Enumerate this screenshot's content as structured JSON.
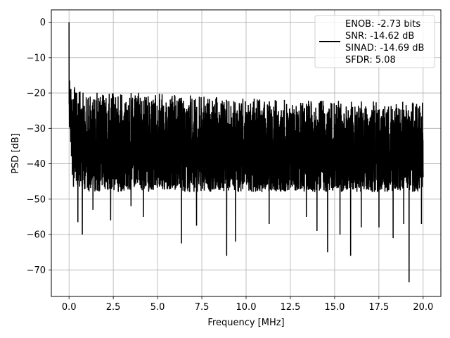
{
  "chart_data": {
    "type": "line",
    "xlabel": "Frequency [MHz]",
    "ylabel": "PSD [dB]",
    "xlim": [
      -1.0,
      21.0
    ],
    "ylim": [
      -77.5,
      3.5
    ],
    "xticks": [
      0.0,
      2.5,
      5.0,
      7.5,
      10.0,
      12.5,
      15.0,
      17.5,
      20.0
    ],
    "xtick_labels": [
      "0.0",
      "2.5",
      "5.0",
      "7.5",
      "10.0",
      "12.5",
      "15.0",
      "17.5",
      "20.0"
    ],
    "yticks": [
      0,
      -10,
      -20,
      -30,
      -40,
      -50,
      -60,
      -70
    ],
    "ytick_labels": [
      "0",
      "−10",
      "−20",
      "−30",
      "−40",
      "−50",
      "−60",
      "−70"
    ],
    "grid": true,
    "legend_position": "top-right",
    "legend": [
      "ENOB: -2.73 bits",
      "SNR: -14.62 dB",
      "SINAD: -14.69 dB",
      "SFDR: 5.08"
    ],
    "line_color": "#000000",
    "series": [
      {
        "samples": 4000,
        "x_range": [
          0.0,
          20.0
        ],
        "peak": {
          "x": 0.0,
          "y": 0.0
        },
        "upper_envelope": [
          [
            0.0,
            -10.0
          ],
          [
            0.1,
            -15.0
          ],
          [
            0.4,
            -19.0
          ],
          [
            1.0,
            -19.5
          ],
          [
            5.0,
            -20.0
          ],
          [
            10.0,
            -21.5
          ],
          [
            15.0,
            -22.0
          ],
          [
            20.0,
            -22.5
          ]
        ],
        "lower_envelope": [
          [
            0.0,
            -28.0
          ],
          [
            0.2,
            -45.0
          ],
          [
            1.0,
            -48.0
          ],
          [
            20.0,
            -48.0
          ]
        ],
        "deep_nulls": [
          [
            0.25,
            -46.5
          ],
          [
            0.5,
            -56.5
          ],
          [
            0.75,
            -60.0
          ],
          [
            1.35,
            -53.0
          ],
          [
            2.35,
            -56.0
          ],
          [
            3.5,
            -52.0
          ],
          [
            4.2,
            -55.0
          ],
          [
            6.35,
            -62.5
          ],
          [
            7.2,
            -57.5
          ],
          [
            8.9,
            -66.0
          ],
          [
            9.4,
            -62.0
          ],
          [
            11.3,
            -57.0
          ],
          [
            13.4,
            -55.0
          ],
          [
            14.0,
            -59.0
          ],
          [
            14.6,
            -65.0
          ],
          [
            15.3,
            -60.0
          ],
          [
            15.9,
            -66.0
          ],
          [
            16.5,
            -58.0
          ],
          [
            17.5,
            -58.0
          ],
          [
            18.3,
            -61.0
          ],
          [
            18.9,
            -57.0
          ],
          [
            19.2,
            -73.5
          ],
          [
            19.9,
            -57.0
          ]
        ]
      }
    ]
  }
}
